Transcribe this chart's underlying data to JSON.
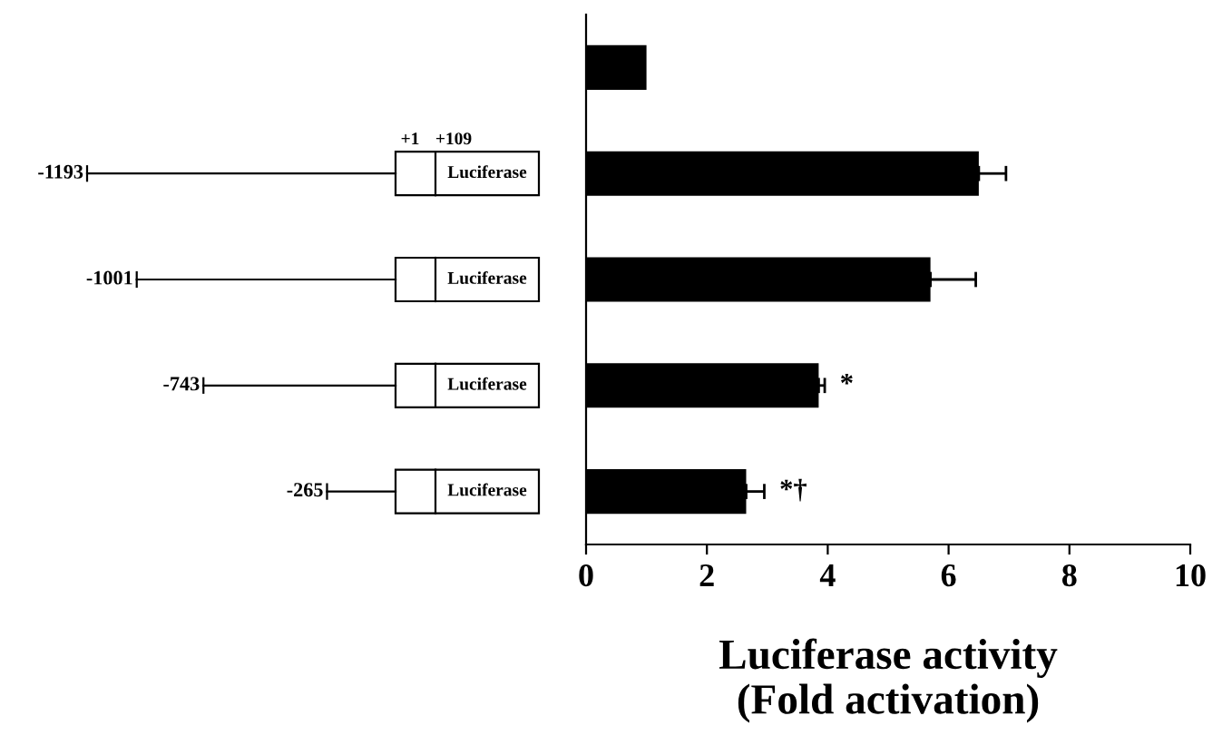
{
  "chart_data": {
    "type": "bar",
    "orientation": "horizontal",
    "categories": [
      null,
      null,
      null,
      null,
      null
    ],
    "values": [
      1.0,
      6.5,
      5.7,
      3.85,
      2.65
    ],
    "errors": [
      null,
      0.45,
      0.75,
      0.1,
      0.3
    ],
    "color": "#000000",
    "xlim": [
      0,
      10
    ],
    "xticks": [
      0,
      2,
      4,
      6,
      8,
      10
    ],
    "xlabel": "Luciferase activity\n(Fold activation)",
    "grid": false,
    "legend": false,
    "annotations": [
      "+1",
      "+109",
      "-1193",
      "Luciferase",
      "-1001",
      "Luciferase",
      "-743",
      "Luciferase",
      "-265",
      "Luciferase",
      {
        "text": "*",
        "x": 3.85
      },
      {
        "text": "*†",
        "x": 2.65
      }
    ]
  }
}
